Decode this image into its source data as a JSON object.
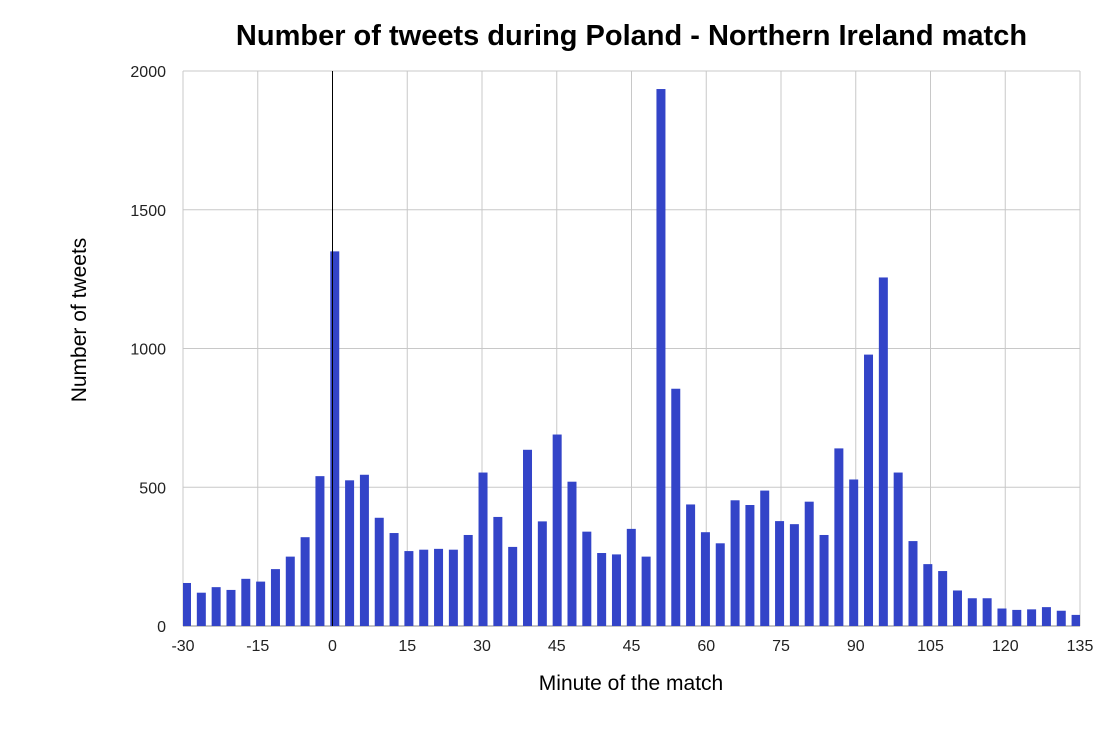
{
  "chart_data": {
    "type": "bar",
    "title": "Number of tweets during Poland - Northern Ireland match",
    "xlabel": "Minute of the match",
    "ylabel": "Number of tweets",
    "ylim": [
      0,
      2000
    ],
    "y_ticks": [
      "0",
      "500",
      "1000",
      "1500",
      "2000"
    ],
    "x_ticks": [
      "-30",
      "-15",
      "0",
      "15",
      "30",
      "45",
      "45",
      "60",
      "75",
      "90",
      "105",
      "120",
      "135"
    ],
    "values": [
      155,
      120,
      140,
      130,
      170,
      160,
      205,
      250,
      320,
      540,
      1350,
      525,
      545,
      390,
      335,
      270,
      275,
      278,
      275,
      328,
      553,
      393,
      285,
      635,
      377,
      690,
      520,
      340,
      263,
      258,
      350,
      250,
      1935,
      855,
      438,
      338,
      298,
      453,
      436,
      488,
      378,
      367,
      448,
      328,
      640,
      528,
      978,
      1256,
      553,
      306,
      223,
      198,
      128,
      100,
      100,
      63,
      58,
      60,
      68,
      55,
      40
    ],
    "kickoff_marker_tick": "0",
    "bar_color": "#3344c8",
    "grid": true,
    "legend": "none"
  }
}
